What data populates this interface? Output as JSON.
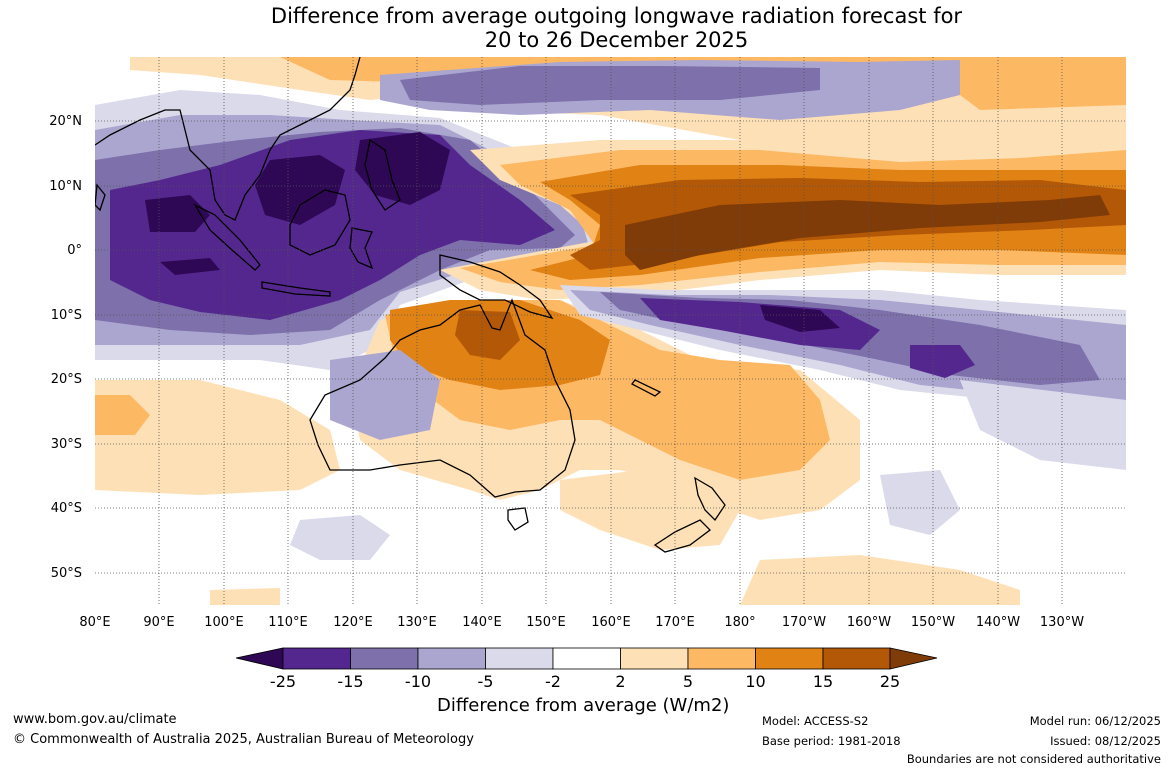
{
  "title": {
    "line1": "Difference from average outgoing longwave radiation forecast for",
    "line2": "20 to 26 December 2025"
  },
  "colors": {
    "n25plus": "#2e0854",
    "n15": "#54278f",
    "n10": "#7d70ab",
    "n5": "#aba6cf",
    "n2": "#dadaeb",
    "neutral": "#ffffff",
    "p2": "#fee0b6",
    "p5": "#fdb863",
    "p10": "#e08214",
    "p15": "#b35806",
    "p25plus": "#7f3b08"
  },
  "axes": {
    "lon_labels": [
      "80°E",
      "90°E",
      "100°E",
      "110°E",
      "120°E",
      "130°E",
      "140°E",
      "150°E",
      "160°E",
      "170°E",
      "180°",
      "170°W",
      "160°W",
      "150°W",
      "140°W",
      "130°W"
    ],
    "lat_labels": [
      "20°N",
      "10°N",
      "0°",
      "10°S",
      "20°S",
      "30°S",
      "40°S",
      "50°S"
    ]
  },
  "colorbar": {
    "ticks": [
      "-25",
      "-15",
      "-10",
      "-5",
      "-2",
      "2",
      "5",
      "10",
      "15",
      "25"
    ],
    "title": "Difference from average (W/m2)"
  },
  "footer": {
    "website": "www.bom.gov.au/climate",
    "copyright": "© Commonwealth of Australia 2025, Australian Bureau of Meteorology",
    "model": "Model: ACCESS-S2",
    "base_period": "Base period: 1981-2018",
    "model_run": "Model run: 06/12/2025",
    "issued": "Issued: 08/12/2025",
    "disclaimer": "Boundaries are not considered authoritative"
  }
}
